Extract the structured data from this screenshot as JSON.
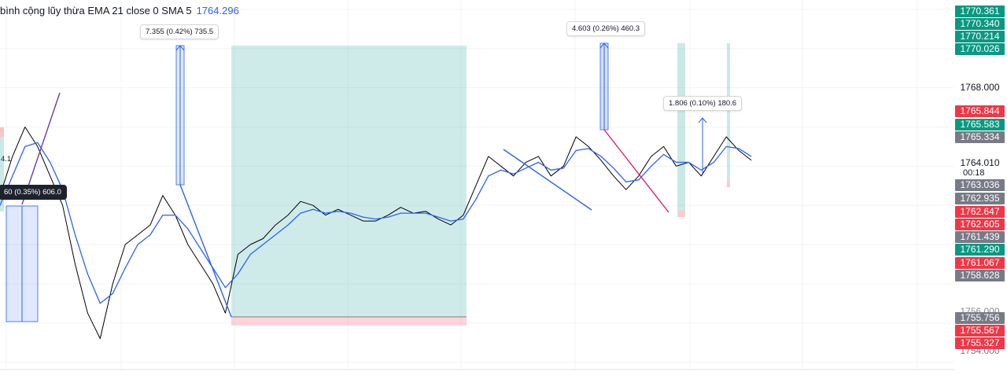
{
  "legend": {
    "label": "bình cộng lũy thừa EMA 21 close 0 SMA 5",
    "value": "1764.296"
  },
  "axis_ticks": [
    "1768.000",
    "1764.010",
    "1756.000",
    "1754.000"
  ],
  "countdown": "00:18",
  "price_labels": [
    {
      "text": "1770.361",
      "color": "#089981"
    },
    {
      "text": "1770.340",
      "color": "#089981"
    },
    {
      "text": "1770.214",
      "color": "#089981"
    },
    {
      "text": "1770.026",
      "color": "#089981"
    },
    {
      "text": "1765.844",
      "color": "#f23645"
    },
    {
      "text": "1765.583",
      "color": "#089981"
    },
    {
      "text": "1765.334",
      "color": "#787b86"
    },
    {
      "text": "1763.036",
      "color": "#787b86"
    },
    {
      "text": "1762.935",
      "color": "#787b86"
    },
    {
      "text": "1762.647",
      "color": "#f23645"
    },
    {
      "text": "1762.605",
      "color": "#f23645"
    },
    {
      "text": "1761.439",
      "color": "#787b86"
    },
    {
      "text": "1761.290",
      "color": "#089981"
    },
    {
      "text": "1761.067",
      "color": "#f23645"
    },
    {
      "text": "1758.628",
      "color": "#787b86"
    },
    {
      "text": "1755.756",
      "color": "#787b86"
    },
    {
      "text": "1755.567",
      "color": "#f23645"
    },
    {
      "text": "1755.327",
      "color": "#f23645"
    }
  ],
  "annotations": [
    {
      "text": "7.355 (0.42%) 735.5"
    },
    {
      "text": "4.603 (0.26%) 460.3"
    },
    {
      "text": "1.806 (0.10%) 180.6"
    },
    {
      "text": "60 (0.35%) 606.0"
    },
    {
      "text": "4.1"
    }
  ],
  "chart_data": {
    "type": "line",
    "title": "",
    "xlabel": "",
    "ylabel": "",
    "ylim": [
      1753.7,
      1772.0
    ],
    "grid": true,
    "series": [
      {
        "name": "",
        "color": "#000000",
        "y": [
          1762.5,
          1764.5,
          1766.0,
          1765.0,
          1763.5,
          1762.0,
          1759.0,
          1756.5,
          1755.2,
          1758.0,
          1760.0,
          1760.5,
          1761.0,
          1762.5,
          1761.5,
          1760.0,
          1759.0,
          1758.0,
          1756.5,
          1759.5,
          1760.0,
          1760.3,
          1761.0,
          1761.5,
          1762.2,
          1762.0,
          1761.5,
          1761.8,
          1761.5,
          1761.2,
          1761.2,
          1761.5,
          1761.9,
          1761.6,
          1761.7,
          1761.3,
          1761.0,
          1761.5,
          1763.0,
          1764.5,
          1764.0,
          1763.5,
          1764.2,
          1764.5,
          1763.5,
          1764.0,
          1765.5,
          1765.0,
          1764.3,
          1763.5,
          1762.8,
          1763.5,
          1764.5,
          1765.0,
          1764.0,
          1764.2,
          1763.5,
          1764.5,
          1765.5,
          1764.8,
          1764.3
        ]
      },
      {
        "name": "",
        "color": "#2962ff",
        "y": [
          1762.0,
          1763.5,
          1765.0,
          1765.2,
          1764.2,
          1762.8,
          1760.5,
          1758.5,
          1757.0,
          1757.5,
          1758.8,
          1760.0,
          1760.5,
          1761.5,
          1761.5,
          1760.8,
          1759.8,
          1758.8,
          1757.8,
          1758.5,
          1759.5,
          1760.0,
          1760.5,
          1761.0,
          1761.6,
          1761.8,
          1761.6,
          1761.7,
          1761.6,
          1761.4,
          1761.3,
          1761.4,
          1761.6,
          1761.6,
          1761.6,
          1761.4,
          1761.2,
          1761.3,
          1762.3,
          1763.5,
          1763.8,
          1763.6,
          1763.9,
          1764.2,
          1763.8,
          1763.9,
          1764.8,
          1764.9,
          1764.5,
          1763.9,
          1763.2,
          1763.3,
          1764.0,
          1764.6,
          1764.2,
          1764.2,
          1763.8,
          1764.2,
          1765.0,
          1764.9,
          1764.5
        ]
      }
    ]
  }
}
